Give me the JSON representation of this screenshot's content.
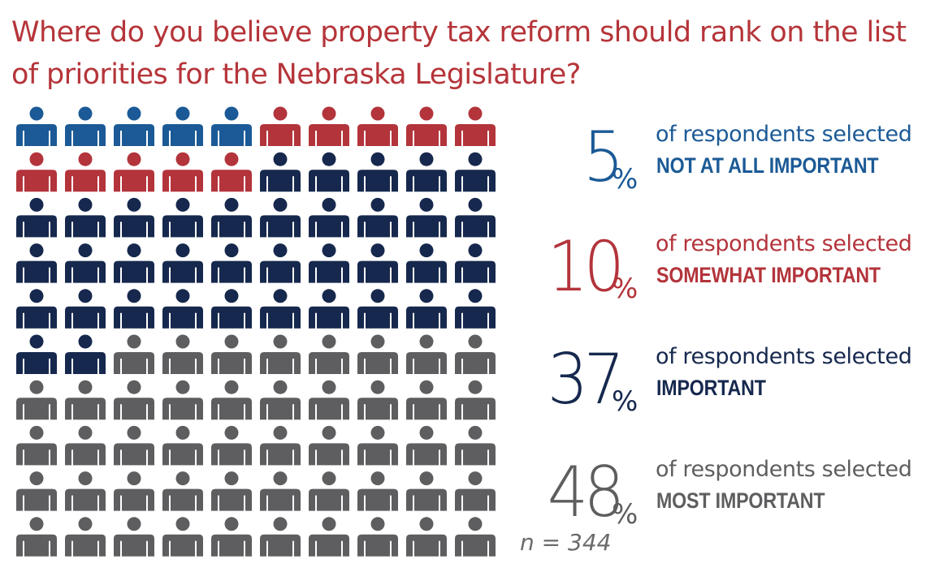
{
  "title": "Where do you believe property tax reform should rank on the list of priorities for the Nebraska Legislature?",
  "colors": {
    "title": "#b5353a",
    "not_at_all": "#1b5a96",
    "somewhat": "#b3343b",
    "important": "#16284d",
    "most": "#5e5e60"
  },
  "icon": "person-icon",
  "chart_data": {
    "type": "pictograph",
    "units_total": 100,
    "grid": {
      "rows": 10,
      "cols": 10
    },
    "categories": [
      "NOT AT ALL IMPORTANT",
      "SOMEWHAT IMPORTANT",
      "IMPORTANT",
      "MOST IMPORTANT"
    ],
    "values": [
      5,
      10,
      37,
      48
    ],
    "unit": "%",
    "lead_text": "of respondents selected",
    "note": "n = 344"
  },
  "stats": [
    {
      "value": "5",
      "unit": "%",
      "lead": "of respondents selected",
      "label": "NOT AT ALL IMPORTANT"
    },
    {
      "value": "10",
      "unit": "%",
      "lead": "of respondents selected",
      "label": "SOMEWHAT IMPORTANT"
    },
    {
      "value": "37",
      "unit": "%",
      "lead": "of respondents selected",
      "label": "IMPORTANT"
    },
    {
      "value": "48",
      "unit": "%",
      "lead": "of respondents selected",
      "label": "MOST IMPORTANT"
    }
  ],
  "note": "n = 344"
}
